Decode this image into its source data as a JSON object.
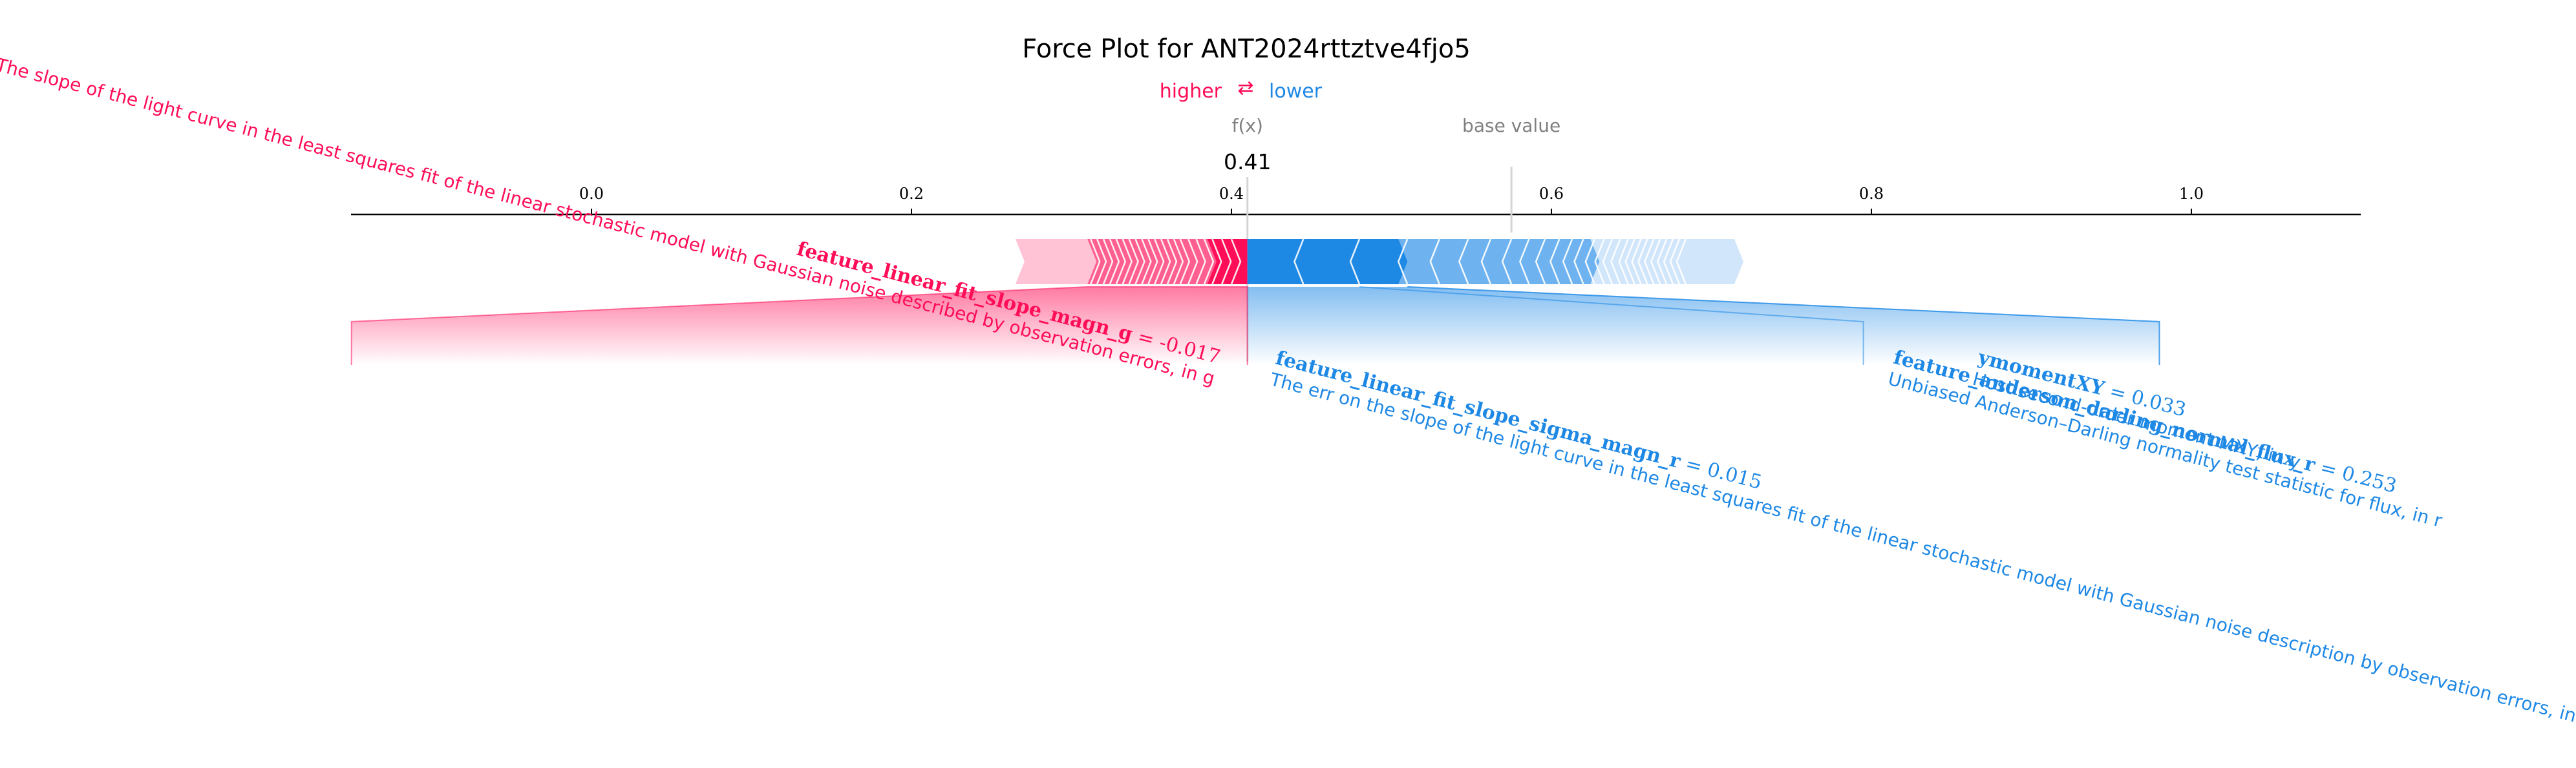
{
  "chart_data": {
    "type": "force",
    "title": "Force Plot for ANT2024rttztve4fjo5",
    "direction_legend": {
      "higher_label": "higher",
      "lower_label": "lower",
      "arrow_symbol": "⇄",
      "higher_color": "#ff0d57",
      "lower_color": "#1e88e5"
    },
    "output_label": "f(x)",
    "output_value": 0.41,
    "output_value_label": "0.41",
    "base_value_label": "base value",
    "base_value": 0.575,
    "xlim": [
      -0.15,
      1.11
    ],
    "ticks": [
      {
        "value": 0.0,
        "label": "0.0"
      },
      {
        "value": 0.2,
        "label": "0.2"
      },
      {
        "value": 0.4,
        "label": "0.4"
      },
      {
        "value": 0.6,
        "label": "0.6"
      },
      {
        "value": 0.8,
        "label": "0.8"
      },
      {
        "value": 1.0,
        "label": "1.0"
      }
    ],
    "push_higher": {
      "color": "#ff0d57",
      "fade_color": "#ffc3d5",
      "range": [
        0.265,
        0.41
      ],
      "labeled_features": [
        {
          "name": "feature_linear_fit_slope_magn_g",
          "value_text": " = -0.017",
          "description": "The slope of the light curve in the least squares fit of the linear stochastic model with Gaussian noise described by observation errors, in g",
          "segment": [
            0.41,
            0.31
          ],
          "label_position": -0.15
        }
      ]
    },
    "push_lower": {
      "color": "#1e88e5",
      "fade_color": "#d1e6fa",
      "range": [
        0.41,
        0.72
      ],
      "labeled_features": [
        {
          "name": "feature_linear_fit_slope_sigma_magn_r",
          "value_text": " = 0.015",
          "description": "The err on the slope of the light curve in the least squares fit of the linear stochastic model with Gaussian noise description by observation errors, in r",
          "segment": [
            0.41,
            0.445
          ],
          "label_position": 0.41
        },
        {
          "name": "feature_anderson_darling_normal_flux_r",
          "value_text": " = 0.253",
          "description": "Unbiased Anderson–Darling normality test statistic for flux, in r",
          "segment": [
            0.445,
            0.48
          ],
          "label_position": 0.795
        },
        {
          "name": "ymomentXY",
          "value_text": " = 0.033",
          "description": "Host second-order moment MXY, in y",
          "segment": [
            0.48,
            0.51
          ],
          "label_position": 0.98
        }
      ],
      "extra_boundaries": [
        0.51,
        0.545,
        0.565,
        0.585,
        0.6,
        0.61
      ]
    }
  }
}
